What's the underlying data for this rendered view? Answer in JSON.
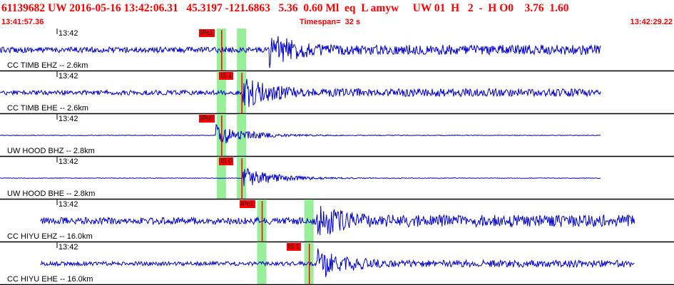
{
  "header": {
    "event_line": "61139682 UW 2016-05-16 13:42:06.31   45.3197 -121.6863   5.36  0.60 Ml  eq  L amyw     UW 01  H   2  -  H O0    3.76  1.60",
    "start_time": "13:41:57.36",
    "timespan": "Timespan=  32 s",
    "end_time": "13:42:29.22"
  },
  "colors": {
    "header_text": "#ff0000",
    "trace": "#0000cc",
    "pick_flag": "#ff0000",
    "window_band": "#99ee99",
    "panel_border": "#000000"
  },
  "tick_label": "13:42",
  "traces": [
    {
      "label": "CC TIMB EHZ -- 2.6km",
      "pick": "IPc1",
      "arrival_type": "P",
      "noise": 1.0,
      "onset": 0.4,
      "win": [
        0.33,
        0.36
      ],
      "pickpos": 0.33,
      "start": 0.0,
      "end": 0.95
    },
    {
      "label": "CC TIMB EHE -- 2.6km",
      "pick": "IS 1",
      "arrival_type": "S",
      "noise": 0.8,
      "onset": 0.36,
      "win": [
        0.33,
        0.36
      ],
      "pickpos": 0.36,
      "start": 0.0,
      "end": 0.95
    },
    {
      "label": "UW HOOD BHZ -- 2.8km",
      "pick": "IPc0",
      "arrival_type": "P",
      "noise": 0.12,
      "onset": 0.32,
      "win": [
        0.33,
        0.36
      ],
      "pickpos": 0.33,
      "start": 0.0,
      "end": 0.95
    },
    {
      "label": "UW HOOD BHE -- 2.8km",
      "pick": "IS 0",
      "arrival_type": "S",
      "noise": 0.1,
      "onset": 0.36,
      "win": [
        0.33,
        0.36
      ],
      "pickpos": 0.36,
      "start": 0.0,
      "end": 0.95
    },
    {
      "label": "CC HIYU EHZ -- 16.0km",
      "pick": "IPc1",
      "arrival_type": "P",
      "noise": 1.2,
      "onset": 0.47,
      "win": [
        0.39,
        0.46
      ],
      "pickpos": 0.39,
      "start": 0.06,
      "end": 1.0
    },
    {
      "label": "CC HIYU EHE -- 16.0km",
      "pick": "IS 1",
      "arrival_type": "S",
      "noise": 0.7,
      "onset": 0.47,
      "win": [
        0.39,
        0.46
      ],
      "pickpos": 0.46,
      "start": 0.06,
      "end": 1.0
    }
  ]
}
